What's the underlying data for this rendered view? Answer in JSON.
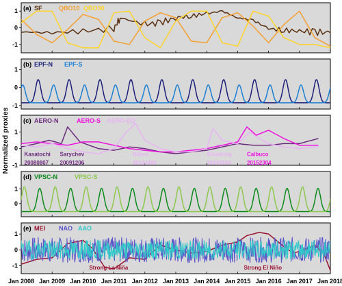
{
  "chart_data": {
    "type": "line",
    "ylabel": "Normalized proxies",
    "xlim": [
      "2008-01",
      "2018-01"
    ],
    "x_ticks": [
      "Jan 2008",
      "Jan 2009",
      "Jan 2010",
      "Jan 2011",
      "Jan 2012",
      "Jan 2013",
      "Jan 2014",
      "Jan 2015",
      "Jan 2016",
      "Jan 2017",
      "Jan 2018"
    ],
    "panels": [
      {
        "tag": "(a)",
        "ylim": [
          -1.5,
          1.5
        ],
        "yticks": [
          -1,
          0,
          1
        ],
        "series": [
          {
            "name": "SF",
            "color": "#5a3010",
            "points": [
              [
                2008.0,
                -0.25
              ],
              [
                2009.0,
                -0.3
              ],
              [
                2010.0,
                -0.2
              ],
              [
                2011.0,
                -0.05
              ],
              [
                2011.2,
                0.6
              ],
              [
                2012.0,
                0.2
              ],
              [
                2012.5,
                0.3
              ],
              [
                2013.0,
                0.6
              ],
              [
                2013.5,
                0.7
              ],
              [
                2014.0,
                0.85
              ],
              [
                2014.5,
                1.0
              ],
              [
                2015.0,
                0.6
              ],
              [
                2015.5,
                0.45
              ],
              [
                2016.0,
                -0.05
              ],
              [
                2016.5,
                -0.15
              ],
              [
                2017.0,
                -0.2
              ],
              [
                2017.5,
                -0.25
              ],
              [
                2018.0,
                -0.3
              ]
            ]
          },
          {
            "name": "QBO10",
            "color": "#f4a030",
            "points": [
              [
                2008.0,
                0.5
              ],
              [
                2008.5,
                -0.4
              ],
              [
                2009.0,
                -0.9
              ],
              [
                2009.5,
                -0.1
              ],
              [
                2010.0,
                0.8
              ],
              [
                2010.5,
                0.5
              ],
              [
                2011.0,
                -0.8
              ],
              [
                2011.5,
                -1.0
              ],
              [
                2012.0,
                0.4
              ],
              [
                2012.5,
                0.9
              ],
              [
                2013.0,
                0.6
              ],
              [
                2013.5,
                -0.8
              ],
              [
                2014.0,
                -0.9
              ],
              [
                2014.5,
                0.6
              ],
              [
                2015.0,
                0.9
              ],
              [
                2015.5,
                0.1
              ],
              [
                2016.0,
                -0.9
              ],
              [
                2016.5,
                0.2
              ],
              [
                2017.0,
                1.0
              ],
              [
                2017.5,
                -0.6
              ],
              [
                2018.0,
                -1.1
              ]
            ]
          },
          {
            "name": "QBO30",
            "color": "#ffd42a",
            "points": [
              [
                2008.0,
                0.3
              ],
              [
                2008.5,
                1.0
              ],
              [
                2009.0,
                1.0
              ],
              [
                2009.5,
                -0.9
              ],
              [
                2010.0,
                -1.2
              ],
              [
                2010.5,
                -1.2
              ],
              [
                2011.0,
                0.9
              ],
              [
                2011.5,
                1.0
              ],
              [
                2012.0,
                -0.6
              ],
              [
                2012.5,
                -1.2
              ],
              [
                2013.0,
                0.4
              ],
              [
                2013.5,
                1.0
              ],
              [
                2014.0,
                1.0
              ],
              [
                2014.5,
                -0.9
              ],
              [
                2015.0,
                -1.1
              ],
              [
                2015.5,
                1.0
              ],
              [
                2016.0,
                0.7
              ],
              [
                2016.5,
                -0.6
              ],
              [
                2017.0,
                -1.0
              ],
              [
                2017.5,
                -1.0
              ],
              [
                2018.0,
                -1.2
              ]
            ]
          }
        ]
      },
      {
        "tag": "(b)",
        "ylim": [
          -1.2,
          1.6
        ],
        "yticks": [
          -1,
          0,
          1
        ],
        "series": [
          {
            "name": "EPF-N",
            "color": "#1b1f7a",
            "phase": 0.05,
            "amp": 1.3
          },
          {
            "name": "EPF-S",
            "color": "#1a7fd4",
            "phase": 0.55,
            "amp": 1.0
          }
        ]
      },
      {
        "tag": "(c)",
        "ylim": [
          -1.0,
          2.0
        ],
        "yticks": [
          -1,
          0,
          1
        ],
        "series": [
          {
            "name": "AERO-N",
            "color": "#6b2a7c",
            "points": [
              [
                2008.0,
                0.1
              ],
              [
                2008.5,
                0.3
              ],
              [
                2008.9,
                0.5
              ],
              [
                2009.3,
                0.3
              ],
              [
                2009.5,
                1.3
              ],
              [
                2009.9,
                0.4
              ],
              [
                2010.5,
                0.0
              ],
              [
                2011.0,
                -0.1
              ],
              [
                2011.5,
                0.1
              ],
              [
                2012.0,
                0.0
              ],
              [
                2012.5,
                -0.2
              ],
              [
                2013.0,
                -0.3
              ],
              [
                2013.5,
                -0.2
              ],
              [
                2014.0,
                -0.1
              ],
              [
                2014.5,
                0.1
              ],
              [
                2015.0,
                0.3
              ],
              [
                2015.5,
                0.2
              ],
              [
                2016.0,
                0.2
              ],
              [
                2016.5,
                0.3
              ],
              [
                2017.0,
                0.3
              ],
              [
                2017.6,
                0.6
              ]
            ]
          },
          {
            "name": "AERO-S",
            "color": "#ee10e0",
            "points": [
              [
                2008.0,
                0.3
              ],
              [
                2008.5,
                0.4
              ],
              [
                2009.0,
                0.3
              ],
              [
                2009.5,
                0.2
              ],
              [
                2010.0,
                0.4
              ],
              [
                2010.5,
                0.4
              ],
              [
                2011.0,
                0.2
              ],
              [
                2011.5,
                0.0
              ],
              [
                2012.0,
                -0.1
              ],
              [
                2012.5,
                -0.2
              ],
              [
                2013.0,
                -0.2
              ],
              [
                2013.5,
                -0.1
              ],
              [
                2014.0,
                0.0
              ],
              [
                2014.5,
                0.2
              ],
              [
                2015.0,
                0.4
              ],
              [
                2015.3,
                1.3
              ],
              [
                2015.6,
                0.8
              ],
              [
                2016.0,
                1.1
              ],
              [
                2016.5,
                0.6
              ],
              [
                2017.0,
                0.2
              ],
              [
                2017.6,
                0.2
              ]
            ]
          },
          {
            "name": "AERO-EQ",
            "color": "#e8b4f4",
            "points": [
              [
                2008.0,
                0.2
              ],
              [
                2008.5,
                0.1
              ],
              [
                2009.0,
                0.3
              ],
              [
                2009.5,
                0.0
              ],
              [
                2010.0,
                -0.2
              ],
              [
                2010.5,
                -0.3
              ],
              [
                2011.0,
                0.0
              ],
              [
                2011.4,
                1.0
              ],
              [
                2011.7,
                1.5
              ],
              [
                2012.0,
                0.5
              ],
              [
                2012.5,
                0.0
              ],
              [
                2013.0,
                -0.2
              ],
              [
                2013.5,
                -0.2
              ],
              [
                2014.0,
                0.0
              ],
              [
                2014.2,
                1.2
              ],
              [
                2014.5,
                0.5
              ],
              [
                2015.0,
                0.3
              ],
              [
                2015.4,
                1.0
              ],
              [
                2015.7,
                0.6
              ],
              [
                2016.0,
                0.3
              ],
              [
                2016.5,
                0.1
              ],
              [
                2017.0,
                0.0
              ],
              [
                2017.6,
                0.1
              ]
            ]
          }
        ],
        "annotations": [
          {
            "text": "Kasatochi",
            "x": 2008.1,
            "y": -0.45,
            "color": "#6b2a7c"
          },
          {
            "text": "20080807",
            "x": 2008.1,
            "y": -0.95,
            "color": "#6b2a7c"
          },
          {
            "text": "Sarychev",
            "x": 2009.25,
            "y": -0.45,
            "color": "#6b2a7c"
          },
          {
            "text": "20091206",
            "x": 2009.25,
            "y": -0.95,
            "color": "#6b2a7c"
          },
          {
            "text": "Nabro",
            "x": 2011.6,
            "y": -0.45,
            "color": "#e8b4f4"
          },
          {
            "text": "20112406",
            "x": 2011.6,
            "y": -0.95,
            "color": "#e8b4f4"
          },
          {
            "text": "Sinabung",
            "x": 2014.0,
            "y": -0.45,
            "color": "#e8b4f4"
          },
          {
            "text": "20140102",
            "x": 2014.0,
            "y": -0.95,
            "color": "#e8b4f4"
          },
          {
            "text": "Calbuco",
            "x": 2015.3,
            "y": -0.45,
            "color": "#ee10e0"
          },
          {
            "text": "20152304",
            "x": 2015.3,
            "y": -0.95,
            "color": "#ee10e0"
          }
        ]
      },
      {
        "tag": "(d)",
        "ylim": [
          -0.9,
          2.2
        ],
        "yticks": [
          0,
          1
        ],
        "series": [
          {
            "name": "VPSC-N",
            "color": "#0a8a1a",
            "phase": 0.1,
            "amp": 1.6
          },
          {
            "name": "VPSC-S",
            "color": "#8cc84a",
            "phase": 0.6,
            "amp": 1.7
          }
        ]
      },
      {
        "tag": "(e)",
        "ylim": [
          -1.5,
          1.7
        ],
        "yticks": [
          -1,
          0,
          1
        ],
        "series": [
          {
            "name": "MEI",
            "color": "#9a1030",
            "points": [
              [
                2008.0,
                -0.9
              ],
              [
                2008.5,
                -0.6
              ],
              [
                2009.0,
                -0.5
              ],
              [
                2009.5,
                0.4
              ],
              [
                2010.0,
                0.6
              ],
              [
                2010.3,
                0.1
              ],
              [
                2010.7,
                -1.1
              ],
              [
                2011.0,
                -1.2
              ],
              [
                2011.5,
                -0.5
              ],
              [
                2012.0,
                -0.6
              ],
              [
                2012.5,
                0.3
              ],
              [
                2013.0,
                0.0
              ],
              [
                2013.5,
                -0.2
              ],
              [
                2014.0,
                -0.1
              ],
              [
                2014.5,
                0.3
              ],
              [
                2015.0,
                0.5
              ],
              [
                2015.3,
                0.9
              ],
              [
                2015.7,
                1.1
              ],
              [
                2016.0,
                1.0
              ],
              [
                2016.5,
                0.2
              ],
              [
                2016.8,
                -0.2
              ],
              [
                2017.0,
                -0.1
              ],
              [
                2017.5,
                0.3
              ],
              [
                2017.8,
                -0.3
              ],
              [
                2018.0,
                -1.3
              ]
            ]
          },
          {
            "name": "NAO",
            "color": "#5a55c8",
            "noise": 0.8,
            "seed": 7
          },
          {
            "name": "AAO",
            "color": "#30c8c8",
            "noise": 0.6,
            "seed": 19
          }
        ],
        "annotations": [
          {
            "text": "Strong La Niña",
            "x": 2010.2,
            "y": -1.25,
            "color": "#9a1030"
          },
          {
            "text": "Strong El Niño",
            "x": 2015.2,
            "y": -1.25,
            "color": "#9a1030"
          }
        ]
      }
    ]
  }
}
